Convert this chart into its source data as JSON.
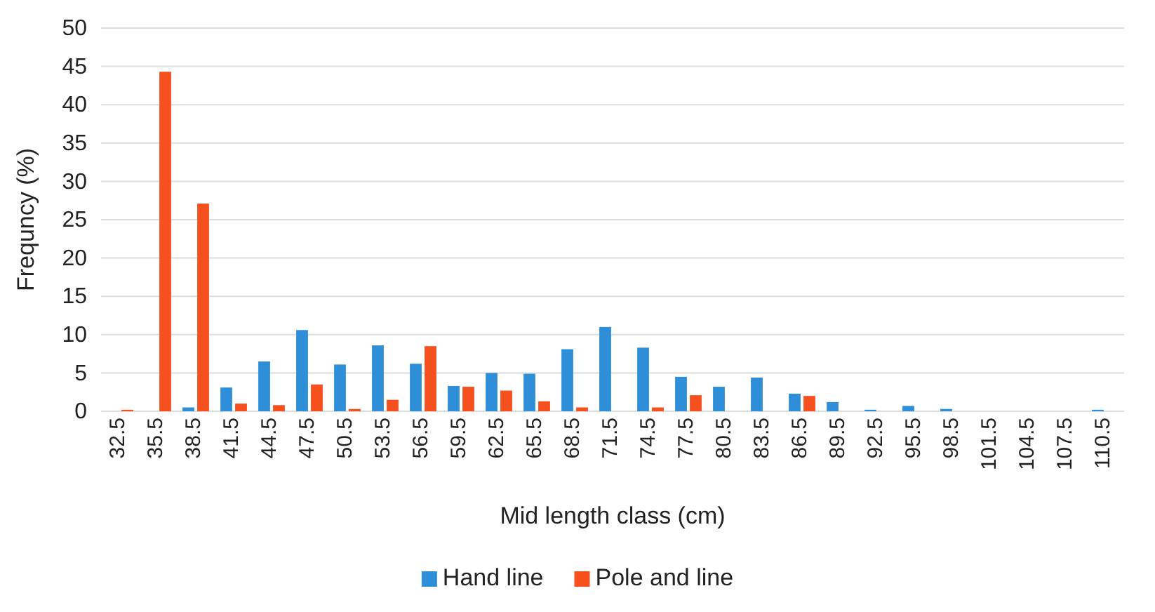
{
  "chart_data": {
    "type": "bar",
    "xlabel": "Mid length class (cm)",
    "ylabel": "Frequncy (%)",
    "categories": [
      "32.5",
      "35.5",
      "38.5",
      "41.5",
      "44.5",
      "47.5",
      "50.5",
      "53.5",
      "56.5",
      "59.5",
      "62.5",
      "65.5",
      "68.5",
      "71.5",
      "74.5",
      "77.5",
      "80.5",
      "83.5",
      "86.5",
      "89.5",
      "92.5",
      "95.5",
      "98.5",
      "101.5",
      "104.5",
      "107.5",
      "110.5"
    ],
    "series": [
      {
        "name": "Hand line",
        "color": "#2e8fd8",
        "values": [
          0,
          0,
          0.5,
          3.1,
          6.5,
          10.6,
          6.1,
          8.6,
          6.2,
          3.3,
          5.0,
          4.9,
          8.1,
          11.0,
          8.3,
          4.5,
          3.2,
          4.4,
          2.3,
          1.2,
          0.2,
          0.7,
          0.3,
          0,
          0,
          0,
          0.2
        ]
      },
      {
        "name": "Pole and line",
        "color": "#f5501e",
        "values": [
          0.2,
          44.3,
          27.1,
          1.0,
          0.8,
          3.5,
          0.3,
          1.5,
          8.5,
          3.2,
          2.7,
          1.3,
          0.5,
          0,
          0.5,
          2.1,
          0,
          0,
          2.0,
          0,
          0,
          0,
          0,
          0,
          0,
          0,
          0
        ]
      }
    ],
    "ylim": [
      0,
      50
    ],
    "yticks": [
      0,
      5,
      10,
      15,
      20,
      25,
      30,
      35,
      40,
      45,
      50
    ],
    "grid": "y",
    "legend": "bottom"
  }
}
